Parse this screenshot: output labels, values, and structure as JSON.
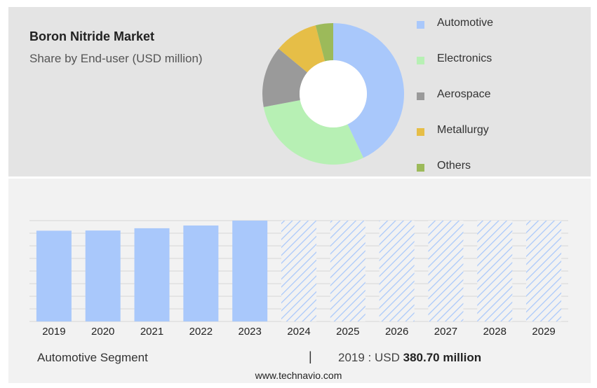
{
  "header": {
    "title": "Boron Nitride Market",
    "subtitle": "Share by End-user (USD million)"
  },
  "donut": {
    "segments": [
      {
        "label": "Automotive",
        "color": "#a9c8fb",
        "share": 43
      },
      {
        "label": "Electronics",
        "color": "#b7f0b4",
        "share": 29
      },
      {
        "label": "Aerospace",
        "color": "#9a9a9a",
        "share": 14
      },
      {
        "label": "Metallurgy",
        "color": "#e6be47",
        "share": 10
      },
      {
        "label": "Others",
        "color": "#9cba5a",
        "share": 4
      }
    ]
  },
  "chart_data": {
    "type": "bar",
    "categories": [
      "2019",
      "2020",
      "2021",
      "2022",
      "2023",
      "2024",
      "2025",
      "2026",
      "2027",
      "2028",
      "2029"
    ],
    "values": [
      380.7,
      381.5,
      391.0,
      402.5,
      423.0,
      null,
      null,
      null,
      null,
      null,
      null
    ],
    "forecast_categories": [
      "2024",
      "2025",
      "2026",
      "2027",
      "2028",
      "2029"
    ],
    "bar_color": "#a9c8fb",
    "forecast_style": "hatched",
    "grid": true
  },
  "footer": {
    "segment_label": "Automotive Segment",
    "separator": "|",
    "year_label": "2019 : USD",
    "value": "380.70 million",
    "site": "www.technavio.com"
  }
}
